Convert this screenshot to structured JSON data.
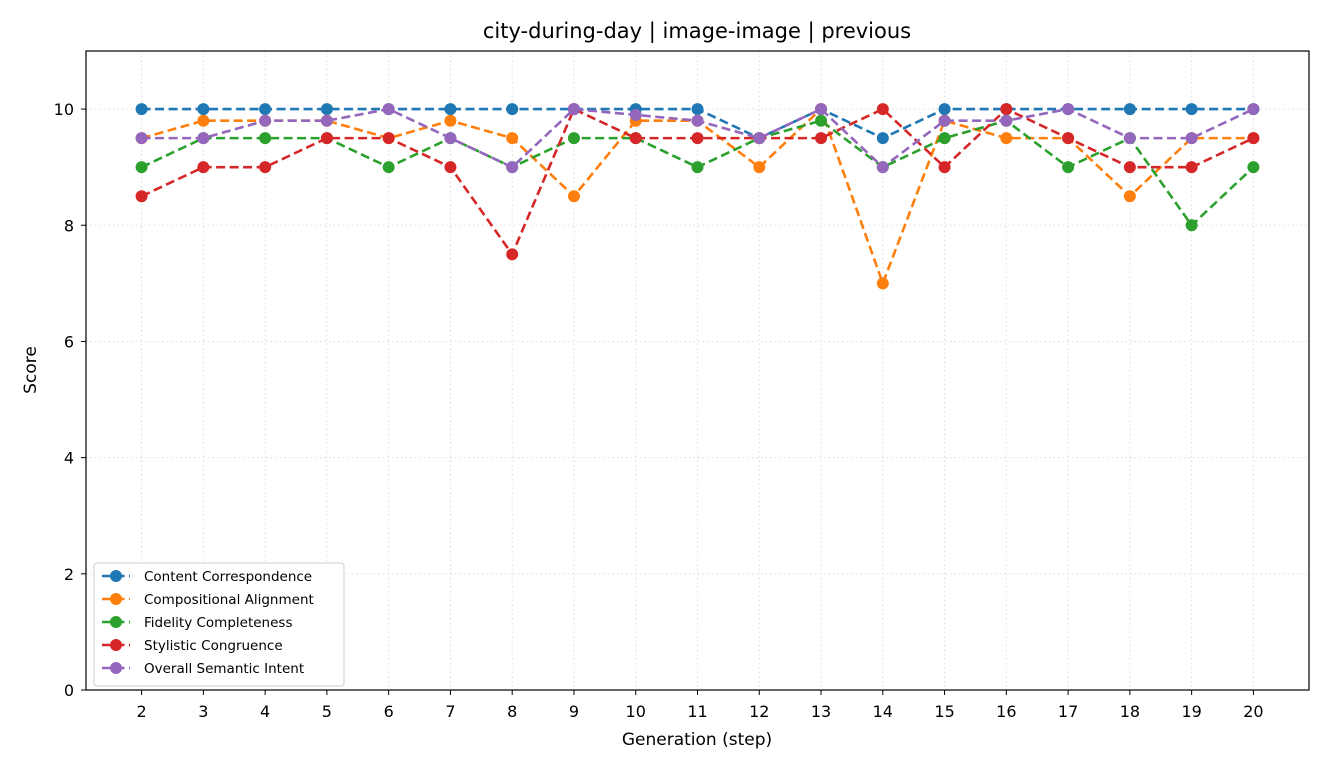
{
  "chart_data": {
    "type": "line",
    "title": "city-during-day | image-image | previous",
    "xlabel": "Generation (step)",
    "ylabel": "Score",
    "x": [
      2,
      3,
      4,
      5,
      6,
      7,
      8,
      9,
      10,
      11,
      12,
      13,
      14,
      15,
      16,
      17,
      18,
      19,
      20
    ],
    "xlim": [
      1.1,
      20.9
    ],
    "ylim": [
      0,
      11
    ],
    "yticks": [
      0,
      2,
      4,
      6,
      8,
      10
    ],
    "grid": true,
    "legend_position": "lower-left",
    "series": [
      {
        "name": "Content Correspondence",
        "color": "#1f77b4",
        "values": [
          10,
          10,
          10,
          10,
          10,
          10,
          10,
          10,
          10,
          10,
          9.5,
          10,
          9.5,
          10,
          10,
          10,
          10,
          10,
          10
        ]
      },
      {
        "name": "Compositional Alignment",
        "color": "#ff7f0e",
        "values": [
          9.5,
          9.8,
          9.8,
          9.8,
          9.5,
          9.8,
          9.5,
          8.5,
          9.8,
          9.8,
          9,
          10,
          7,
          9.8,
          9.5,
          9.5,
          8.5,
          9.5,
          9.5
        ]
      },
      {
        "name": "Fidelity Completeness",
        "color": "#2ca02c",
        "values": [
          9,
          9.5,
          9.5,
          9.5,
          9,
          9.5,
          9,
          9.5,
          9.5,
          9,
          9.5,
          9.8,
          9,
          9.5,
          9.8,
          9,
          9.5,
          8,
          9
        ]
      },
      {
        "name": "Stylistic Congruence",
        "color": "#d62728",
        "values": [
          8.5,
          9,
          9,
          9.5,
          9.5,
          9,
          7.5,
          10,
          9.5,
          9.5,
          9.5,
          9.5,
          10,
          9,
          10,
          9.5,
          9,
          9,
          9.5
        ]
      },
      {
        "name": "Overall Semantic Intent",
        "color": "#9467bd",
        "values": [
          9.5,
          9.5,
          9.8,
          9.8,
          10,
          9.5,
          9,
          10,
          9.9,
          9.8,
          9.5,
          10,
          9,
          9.8,
          9.8,
          10,
          9.5,
          9.5,
          10
        ]
      }
    ]
  }
}
